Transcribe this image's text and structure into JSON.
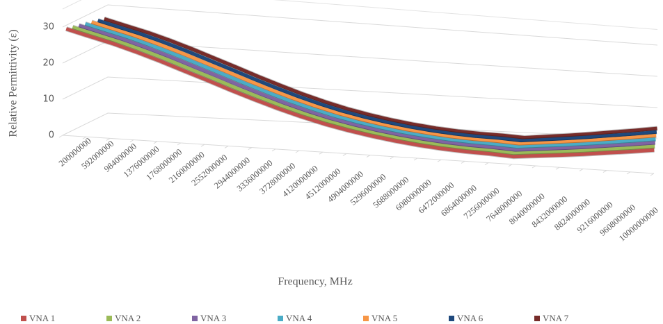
{
  "chart_data": {
    "type": "line3d",
    "y_label": "Relative Permittivity (ε)",
    "x_label": "Frequency, MHz",
    "categories": [
      "200000000",
      "592000000",
      "984000000",
      "1376000000",
      "1768000000",
      "2160000000",
      "2552000000",
      "2944000000",
      "3336000000",
      "3728000000",
      "4120000000",
      "4512000000",
      "4904000000",
      "5296000000",
      "5688000000",
      "6080000000",
      "6472000000",
      "6864000000",
      "7256000000",
      "7648000000",
      "8040000000",
      "8432000000",
      "8824000000",
      "9216000000",
      "9608000000",
      "10000000000"
    ],
    "series": [
      {
        "name": "VNA 1",
        "color": "#c0504d",
        "values": [
          29,
          27.5,
          26,
          24.2,
          22.2,
          20,
          17.8,
          15.5,
          13.3,
          11.2,
          9.3,
          7.6,
          6.2,
          5,
          4,
          3.2,
          2.6,
          2.2,
          2,
          1.6,
          2.3,
          3,
          3.8,
          4.7,
          5.6,
          6.6
        ]
      },
      {
        "name": "VNA 2",
        "color": "#9bbb59",
        "values": [
          28.6,
          27.1,
          25.6,
          23.8,
          21.8,
          19.6,
          17.4,
          15.1,
          12.9,
          10.8,
          8.9,
          7.2,
          5.8,
          4.6,
          3.6,
          2.8,
          2.2,
          1.8,
          1.6,
          1.2,
          1.9,
          2.6,
          3.4,
          4.3,
          5.2,
          6.2
        ]
      },
      {
        "name": "VNA 3",
        "color": "#8064a2",
        "values": [
          28.2,
          26.7,
          25.2,
          23.4,
          21.4,
          19.2,
          17,
          14.7,
          12.5,
          10.4,
          8.5,
          6.8,
          5.4,
          4.2,
          3.2,
          2.4,
          1.8,
          1.4,
          1.2,
          0.8,
          1.5,
          2.2,
          3,
          3.9,
          4.8,
          5.8
        ]
      },
      {
        "name": "VNA 4",
        "color": "#4bacc6",
        "values": [
          27.8,
          26.3,
          24.8,
          23,
          21,
          18.8,
          16.6,
          14.3,
          12.1,
          10,
          8.1,
          6.4,
          5,
          3.8,
          2.8,
          2,
          1.4,
          1,
          0.8,
          0.4,
          1.1,
          1.8,
          2.6,
          3.5,
          4.4,
          5.4
        ]
      },
      {
        "name": "VNA 5",
        "color": "#f79646",
        "values": [
          27.4,
          25.9,
          24.4,
          22.6,
          20.6,
          18.4,
          16.2,
          13.9,
          11.7,
          9.6,
          7.7,
          6,
          4.6,
          3.4,
          2.4,
          1.6,
          1,
          0.6,
          0.4,
          0,
          0.7,
          1.4,
          2.2,
          3.1,
          4,
          5
        ]
      },
      {
        "name": "VNA 6",
        "color": "#1f497d",
        "values": [
          27,
          25.5,
          24,
          22.2,
          20.2,
          18,
          15.8,
          13.5,
          11.3,
          9.2,
          7.3,
          5.6,
          4.2,
          3,
          2,
          1.2,
          0.6,
          0.2,
          0,
          -0.4,
          0.3,
          1,
          1.8,
          2.7,
          3.6,
          4.6
        ]
      },
      {
        "name": "VNA 7",
        "color": "#772c2a",
        "values": [
          26.6,
          25.1,
          23.6,
          21.8,
          19.8,
          17.6,
          15.4,
          13.1,
          10.9,
          8.8,
          6.9,
          5.2,
          3.8,
          2.6,
          1.6,
          0.8,
          0.2,
          -0.2,
          -0.4,
          -0.8,
          -0.1,
          0.6,
          1.4,
          2.3,
          3.2,
          4.2
        ]
      }
    ],
    "ylim": [
      0,
      35
    ],
    "yticks": [
      0,
      10,
      20,
      30
    ],
    "grid": true
  }
}
